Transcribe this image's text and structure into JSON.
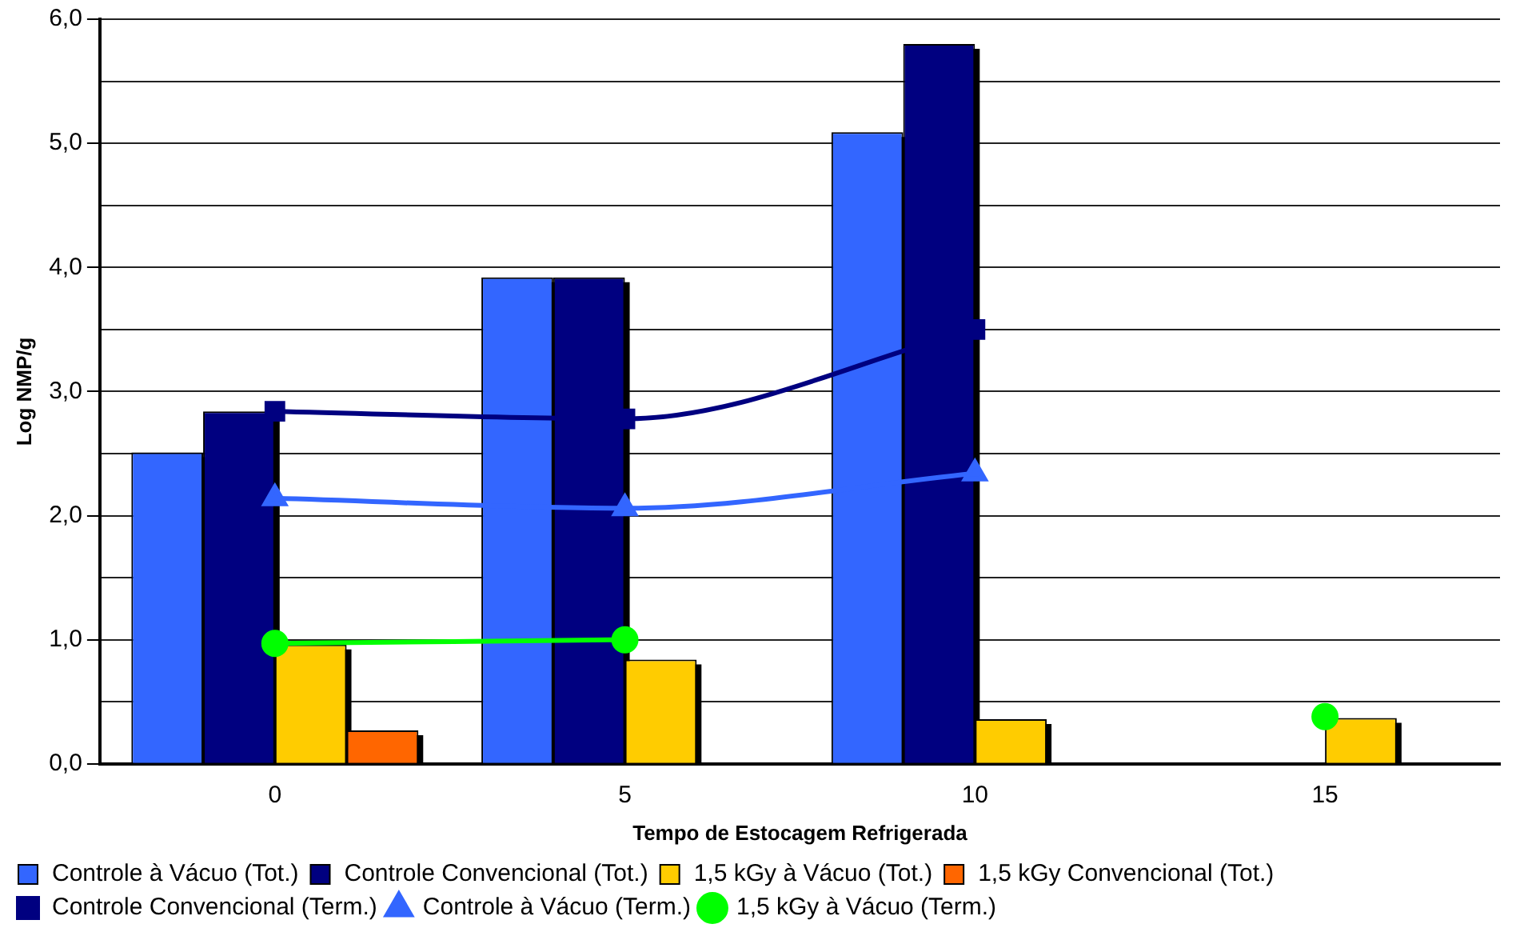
{
  "chart_data": {
    "type": "bar",
    "xlabel": "Tempo de Estocagem Refrigerada",
    "ylabel": "Log NMP/g",
    "categories": [
      "0",
      "5",
      "10",
      "15"
    ],
    "series": [
      {
        "name": "Controle à Vácuo (Tot.)",
        "color": "#3366ff",
        "values": [
          2.51,
          3.92,
          5.09,
          null
        ]
      },
      {
        "name": "Controle Convencional (Tot.)",
        "color": "#000080",
        "values": [
          2.84,
          3.92,
          5.8,
          null
        ]
      },
      {
        "name": "1,5 kGy à Vácuo (Tot.)",
        "color": "#ffcc00",
        "values": [
          0.96,
          0.84,
          0.36,
          0.37
        ]
      },
      {
        "name": "1,5 kGy Convencional (Tot.)",
        "color": "#ff6600",
        "values": [
          0.27,
          null,
          null,
          null
        ]
      },
      {
        "name": "Controle Convencional (Term.)",
        "type": "line",
        "marker": "square",
        "color": "#000080",
        "values": [
          2.84,
          2.78,
          3.5,
          null
        ]
      },
      {
        "name": "Controle à Vácuo (Term.)",
        "type": "line",
        "marker": "triangle",
        "color": "#3366ff",
        "values": [
          2.14,
          2.06,
          2.34,
          null
        ]
      },
      {
        "name": "1,5 kGy à Vácuo (Term.)",
        "type": "line",
        "marker": "circle",
        "color": "#00ff00",
        "values": [
          0.97,
          1.0,
          null,
          0.38
        ]
      }
    ],
    "ylim": [
      0,
      6
    ],
    "yticks": [
      {
        "value": 0,
        "label": "0,0"
      },
      {
        "value": 0.5,
        "label": null
      },
      {
        "value": 1,
        "label": "1,0"
      },
      {
        "value": 1.5,
        "label": null
      },
      {
        "value": 2,
        "label": "2,0"
      },
      {
        "value": 2.5,
        "label": null
      },
      {
        "value": 3,
        "label": "3,0"
      },
      {
        "value": 3.5,
        "label": null
      },
      {
        "value": 4,
        "label": "4,0"
      },
      {
        "value": 4.5,
        "label": null
      },
      {
        "value": 5,
        "label": "5,0"
      },
      {
        "value": 5.5,
        "label": null
      },
      {
        "value": 6,
        "label": "6,0"
      }
    ],
    "grid": "y",
    "legend": "bottom"
  }
}
